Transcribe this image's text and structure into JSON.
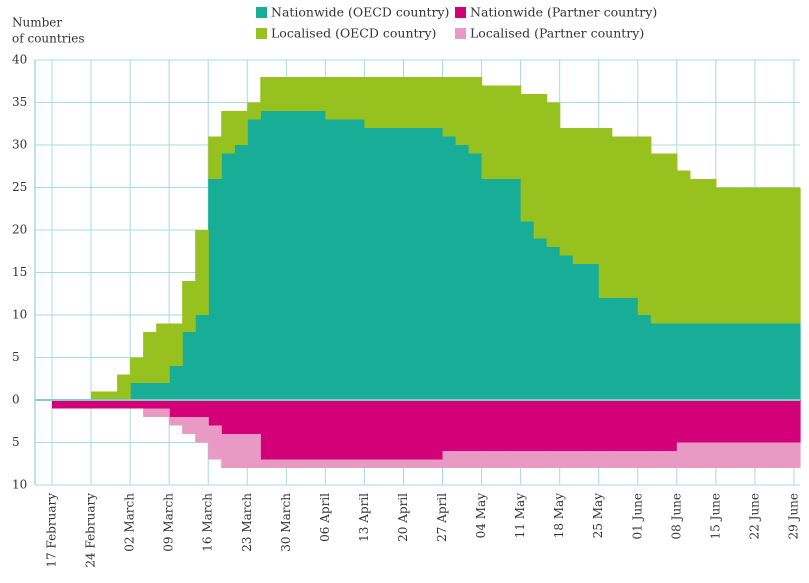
{
  "chart_data": {
    "type": "stacked_step_area",
    "ylabel": [
      "Number",
      "of countries"
    ],
    "categories": [
      "17 February",
      null,
      null,
      "24 February",
      null,
      null,
      "02 March",
      null,
      null,
      "09 March",
      null,
      null,
      "16 March",
      null,
      null,
      "23 March",
      null,
      null,
      "30 March",
      null,
      null,
      "06 April",
      null,
      null,
      "13 April",
      null,
      null,
      "20 April",
      null,
      null,
      "27 April",
      null,
      null,
      "04 May",
      null,
      null,
      "11 May",
      null,
      null,
      "18 May",
      null,
      null,
      "25 May",
      null,
      null,
      "01 June",
      null,
      null,
      "08 June",
      null,
      null,
      "15 June",
      null,
      null,
      "22 June",
      null,
      null,
      "29 June"
    ],
    "series": [
      {
        "name": "Nationwide (OECD country)",
        "color": "#17ad96",
        "values": [
          0,
          0,
          0,
          0,
          0,
          0,
          2,
          2,
          2,
          4,
          8,
          10,
          26,
          29,
          30,
          33,
          34,
          34,
          34,
          34,
          34,
          33,
          33,
          33,
          32,
          32,
          32,
          32,
          32,
          32,
          31,
          30,
          29,
          26,
          26,
          26,
          21,
          19,
          18,
          17,
          16,
          16,
          12,
          12,
          12,
          10,
          9,
          9,
          9,
          9,
          9,
          9,
          9,
          9,
          9,
          9,
          9,
          9
        ]
      },
      {
        "name": "Localised (OECD country)",
        "color": "#97c11f",
        "values": [
          0,
          0,
          0,
          1,
          1,
          3,
          3,
          6,
          7,
          5,
          6,
          10,
          5,
          5,
          4,
          2,
          4,
          4,
          4,
          4,
          4,
          5,
          5,
          5,
          6,
          6,
          6,
          6,
          6,
          6,
          7,
          8,
          9,
          11,
          11,
          11,
          15,
          17,
          17,
          15,
          16,
          16,
          20,
          19,
          19,
          21,
          20,
          20,
          18,
          17,
          17,
          16,
          16,
          16,
          16,
          16,
          16,
          16
        ]
      },
      {
        "name": "Nationwide (Partner country)",
        "color": "#d4007a",
        "values": [
          -1,
          -1,
          -1,
          -1,
          -1,
          -1,
          -1,
          -1,
          -1,
          -2,
          -2,
          -2,
          -3,
          -4,
          -4,
          -4,
          -7,
          -7,
          -7,
          -7,
          -7,
          -7,
          -7,
          -7,
          -7,
          -7,
          -7,
          -7,
          -7,
          -7,
          -6,
          -6,
          -6,
          -6,
          -6,
          -6,
          -6,
          -6,
          -6,
          -6,
          -6,
          -6,
          -6,
          -6,
          -6,
          -6,
          -6,
          -6,
          -5,
          -5,
          -5,
          -5,
          -5,
          -5,
          -5,
          -5,
          -5,
          -5
        ]
      },
      {
        "name": "Localised (Partner country)",
        "color": "#e899c4",
        "values": [
          0,
          0,
          0,
          0,
          0,
          0,
          0,
          -1,
          -1,
          -1,
          -2,
          -3,
          -4,
          -4,
          -4,
          -4,
          -1,
          -1,
          -1,
          -1,
          -1,
          -1,
          -1,
          -1,
          -1,
          -1,
          -1,
          -1,
          -1,
          -1,
          -2,
          -2,
          -2,
          -2,
          -2,
          -2,
          -2,
          -2,
          -2,
          -2,
          -2,
          -2,
          -2,
          -2,
          -2,
          -2,
          -2,
          -2,
          -3,
          -3,
          -3,
          -3,
          -3,
          -3,
          -3,
          -3,
          -3,
          -3
        ]
      }
    ],
    "ylim": [
      -10,
      40
    ],
    "yticks": [
      {
        "value": -10,
        "label": "10"
      },
      {
        "value": -5,
        "label": "5"
      },
      0,
      5,
      10,
      15,
      20,
      25,
      30,
      35,
      40
    ],
    "grid": true,
    "grid_color": "#a8dcd6"
  }
}
